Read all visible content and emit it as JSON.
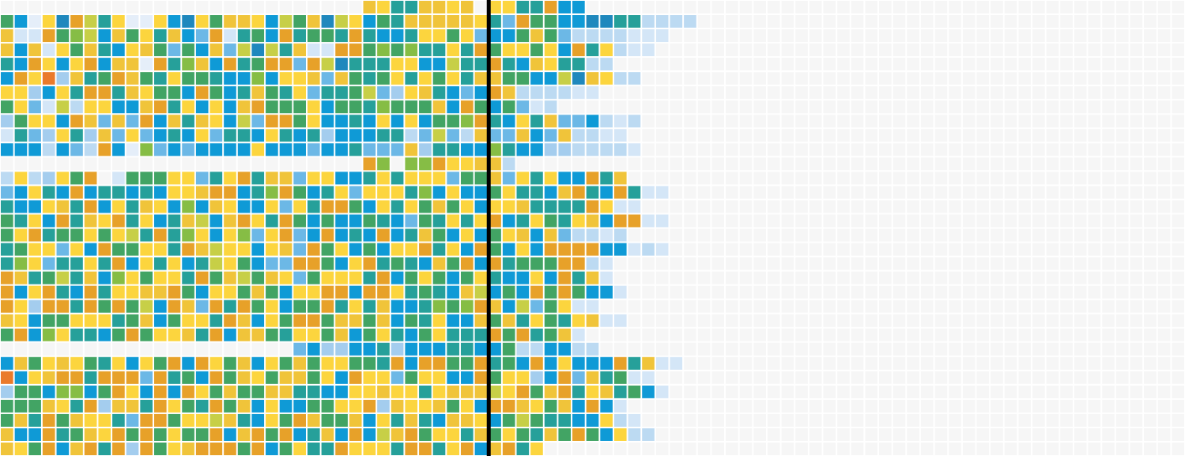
{
  "palette": [
    "#f6f6f6",
    "#e5eef9",
    "#d4e6f7",
    "#bcdaf2",
    "#a4cdee",
    "#6cb8e6",
    "#0f9ad6",
    "#1f88bd",
    "#26a09a",
    "#42a464",
    "#86bd45",
    "#c7cf47",
    "#f0c43a",
    "#fcd53e",
    "#e7a129",
    "#ea7a2b",
    "#ec5b37"
  ],
  "chart_data": {
    "type": "heatmap",
    "title": "",
    "xlabel": "",
    "ylabel": "",
    "legend": "none",
    "grid": true,
    "columns": 85,
    "rows": 32,
    "divider_after_column": 35,
    "grid_rows": [
      "00000000000000000000000000cd88ccdc-dd88e6600000000000000000000000000000000000000000000000000000000000000000000000000000",
      "961d7eb8d11d67d9ccd6b9c7bd698cccccd85e9966778833330000000000000000000000000000000000000000000000000000000000000000",
      "c22e9ab6c9d8c65e2896e8998e8668dd9d5669c9533332220000000000000000000000000000000000000000000000000000000000000000",
      "c6c2d9c86dc9596c5b7b8c22ee9a9a88d8e9dd9d6e8d3220000000000000000000000000000000000000000000000000000000000000000",
      "86ed6de6cc1e8ac6e89ee5eb7888dd66b88e86cd88330000000000000000000000000000000000000000000000000000000000000000000",
      "6edf4c89ec98d99866a6ddc5c989d8d9d8cc9966b7cd3300000000000000000000000000000000000000000000000000000000000000000",
      "dd46d8ee8cd996e968c98d5889b54dc8656ec333322000000000000000000000000000000000000000000000000000000000000000000000",
      "9d52b3dd66ce8d6d6ce999d6998a999c6e9695230000000000000000000000000000000000000000000000000000000000000000000000000",
      "49dd6ec5c5e6c8cd6b5ee9d6686d6d699ae86d8c556323000000000000000000000000000000000000000000000000000000000000000000",
      "2854d84c5d5686d5886d86846668835b53c55c65c332200000000000000000000000000000000000000000000000000000000000000000000",
      "6663653e61a5656666d6665668555c48866a8664433332000000000000000000000000000000000000000000000000000000000000000000",
      "00000000000000000000000000ea0aaeddcc30000000000000000000000000000000000000000000000000000000000000000000000000000",
      "3d34d9e02999dd58de8cc5dd668d8ddd599c5d8d66e8c0000000000000000000000000000000000000000000000000000000000000000000",
      "56d86e688686ddcee68ae968d5ddd8a6d669d886ce86e822000000000000000000000000000000000000000000000000000000000000000000",
      "866dc8e6d8cd6a6cd66d5d8ee96d8d9c9d6ddc8888ed22000000000000000000000000000000000000000000000000000000000000000000",
      "98d6e8cde8d68cb6ced8e96966986598d8de68d98dc6ee22000000000000000000000000000000000000000000000000000000000000000000",
      "9de899d9db8e8ad6da5de56e686e68c96d69dc6c53323000000000000000000000000000000000000000000000000000000000000000000000",
      "89dd5d6e99dd8ecbdd6dc5e9d696dde8d6e96d6eeee6623200000000000000000000000000000000000000000000000000000000000000000",
      "8ad588d8e6d8d68bd9655ee96de8986c9e6e8999ee3200000000000000000000000000000000000000000000000000000000000000000000",
      "ec89b8c6ad9dd8e9cb9cd59ddd8e69d969d866d6e8c200000000000000000000000000000000000000000000000000000000000000000000",
      "e6de86e8ddcce96dd9c96ddee6eed8986cb696e9e96620000000000000000000000000000000000000000000000000000000000000000000",
      "ed4ee8e9e9b6ec5e8e9d699e8d8c668a9aec6b59d2200000000000000000000000000000000000000000000000000000000000000000000",
      "cd699ddd89c69dd8ec6d9ee9cc9c698d66c9c8d98dc22000000000000000000000000000000000000000000000000000000000000000000",
      "9e6ad8869e9ddc8e6cc98dd9c69d869d888e9e89c2000000000000000000000000000000000000000000000000000000000000000000000",
      "0000000000000000000005644668466688669336633000000000000000000000000000000000000000000000000000000000000000000000",
      "6c9dcd98d6d9e6ed9c6d9c9dd998e6ee99e896e6d666e8c2200000000000000000000000000000000000000000000000000000000000000000",
      "f6dcee8eee5e896e9cd9cc9d6edd59dd66e9dd46e5c8922000000000000000000000000000000000000000000000000000000000000000000",
      "4996aa69ed6e6ed9c99cc8866ddcdd8dcccbde9ce8dc896200000000000000000000000000000000000000000000000000000000000000000",
      "999cd8e4cc8ed98e9c6d6699dde4cddc9d6eecd9c6e6200000000000000000000000000000000000000000000000000000000000000000000",
      "9c8e9cdd85ee9ddbc86d9ec99c6d8c86ccd69b98866d3200000000000000000000000000000000000000000000000000000000000000000000",
      "c66e89cde9e9d99e6ce9e68c6e6bce9dd8c9d98c9e96d3300000000000000000000000000000000000000000000000000000000000000000",
      "cd9e6ce8e4e9dceee9e69d88eddd8ee8de6ce8d0000000000000000000000000000000000000000000000000000000000000000000000000"
    ]
  }
}
